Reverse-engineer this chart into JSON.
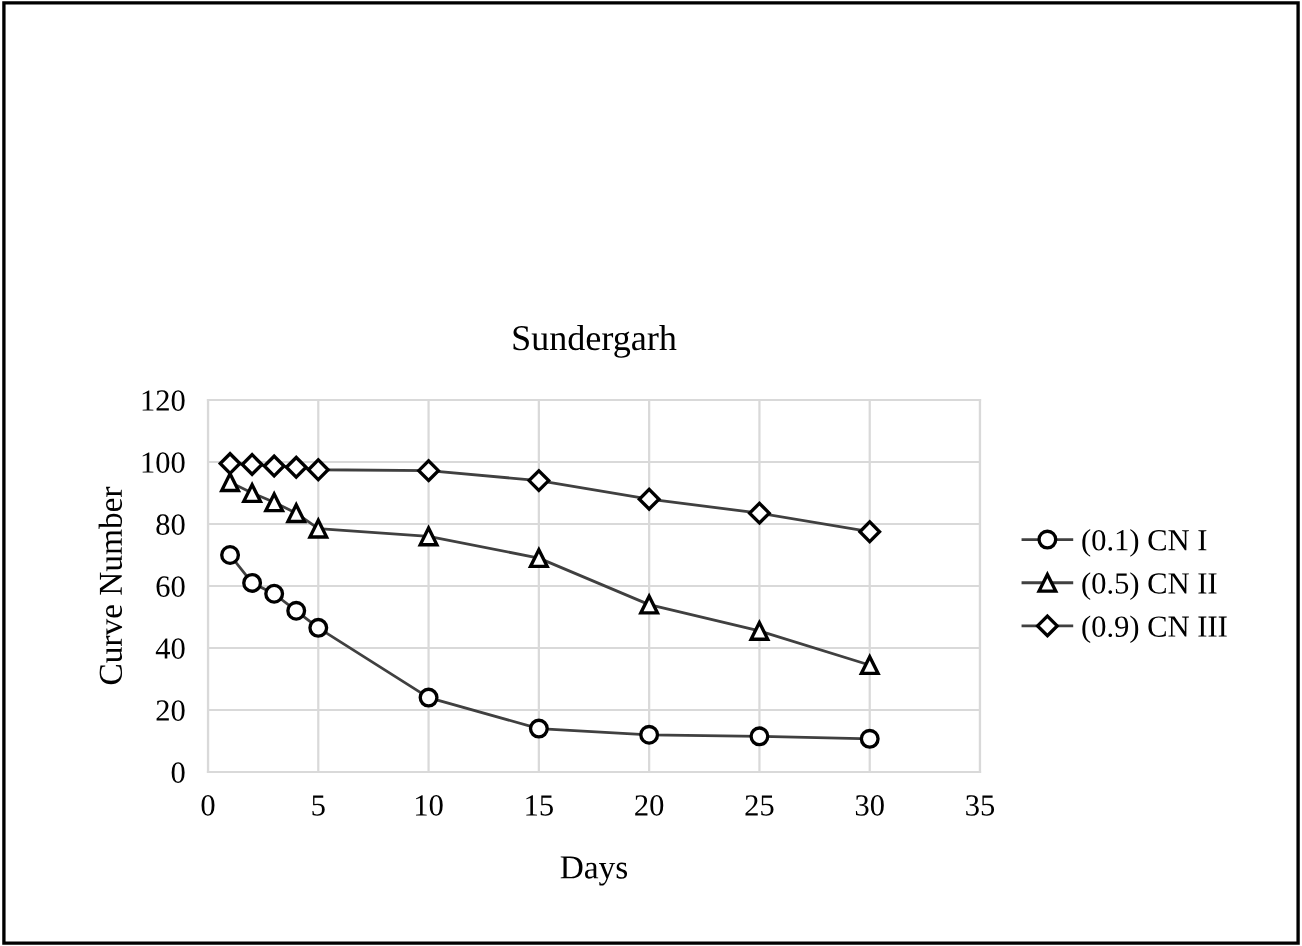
{
  "chart_data": {
    "type": "line",
    "title": "Sundergarh",
    "xlabel": "Days",
    "ylabel": "Curve Number",
    "x": [
      1,
      2,
      3,
      4,
      5,
      10,
      15,
      20,
      25,
      30
    ],
    "series": [
      {
        "name": "(0.1) CN I",
        "color": "#404040",
        "marker": "circle",
        "values": [
          70,
          61,
          57.5,
          52,
          46.5,
          24,
          14,
          12,
          11.5,
          10.7
        ]
      },
      {
        "name": "(0.5) CN II",
        "color": "#404040",
        "marker": "triangle",
        "values": [
          93.5,
          90,
          87,
          83.5,
          78.5,
          76,
          69,
          54,
          45.5,
          34.5
        ]
      },
      {
        "name": "(0.9) CN III",
        "color": "#404040",
        "marker": "diamond",
        "values": [
          99.5,
          99.2,
          98.7,
          98.3,
          97.5,
          97.2,
          94,
          88,
          83.5,
          77.5
        ]
      }
    ],
    "xlim": [
      0,
      35
    ],
    "xticks": [
      0,
      5,
      10,
      15,
      20,
      25,
      30,
      35
    ],
    "ylim": [
      0,
      120
    ],
    "yticks": [
      0,
      20,
      40,
      60,
      80,
      100,
      120
    ],
    "grid": true,
    "legend": "right",
    "line_style": "solid"
  }
}
